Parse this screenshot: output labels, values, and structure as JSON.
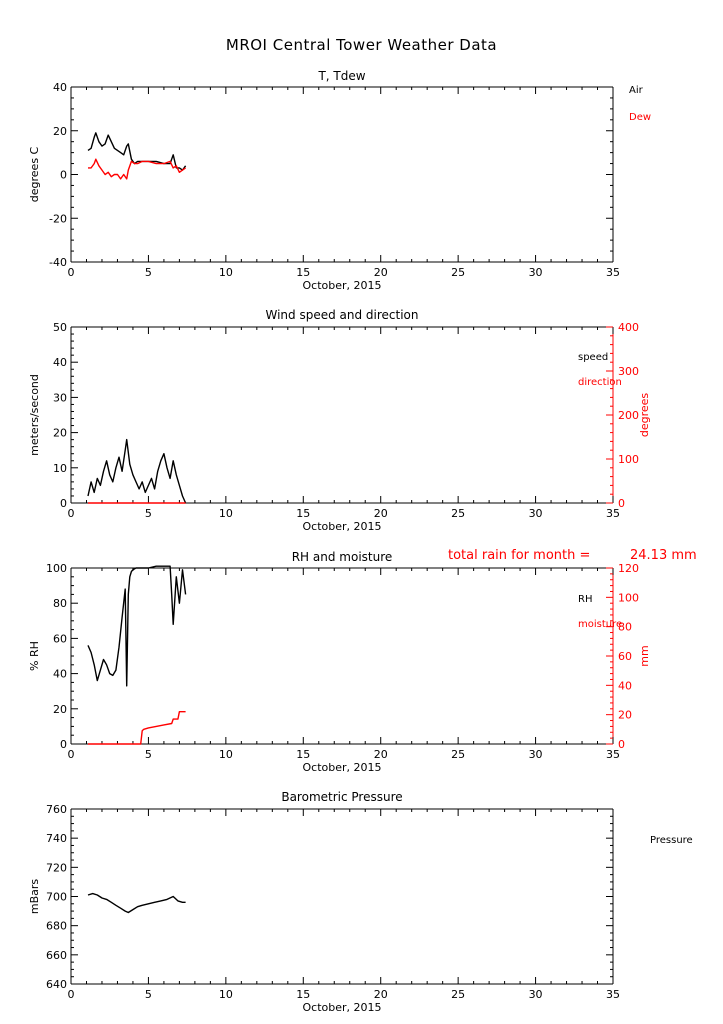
{
  "page_title": "MROI Central Tower Weather Data",
  "colors": {
    "black": "#000000",
    "red": "#ff0000"
  },
  "chart_data": [
    {
      "type": "line",
      "title": "T, Tdew",
      "xlabel": "October, 2015",
      "ylabel": "degrees C",
      "xlim": [
        0,
        35
      ],
      "ylim": [
        -40,
        40
      ],
      "xticks": [
        0,
        5,
        10,
        15,
        20,
        25,
        30,
        35
      ],
      "yticks": [
        -40,
        -20,
        0,
        20,
        40
      ],
      "legend": [
        {
          "label": "Air",
          "color": "#000000"
        },
        {
          "label": "Dew",
          "color": "#ff0000"
        }
      ],
      "series": [
        {
          "name": "Air",
          "color": "#000000",
          "x": [
            1.1,
            1.3,
            1.5,
            1.6,
            1.8,
            2.0,
            2.2,
            2.4,
            2.6,
            2.8,
            3.0,
            3.2,
            3.4,
            3.6,
            3.7,
            3.9,
            4.1,
            4.3,
            4.6,
            5.0,
            5.5,
            6.0,
            6.4,
            6.6,
            6.8,
            7.0,
            7.2,
            7.4
          ],
          "y": [
            11,
            12,
            17,
            19,
            15,
            13,
            14,
            18,
            15,
            12,
            11,
            10,
            9,
            13,
            14,
            7,
            5,
            6,
            6,
            6,
            6,
            5,
            5,
            9,
            3,
            3,
            2,
            4
          ]
        },
        {
          "name": "Dew",
          "color": "#ff0000",
          "x": [
            1.1,
            1.3,
            1.5,
            1.6,
            1.8,
            2.0,
            2.2,
            2.4,
            2.6,
            2.8,
            3.0,
            3.2,
            3.4,
            3.6,
            3.7,
            3.9,
            4.1,
            4.3,
            4.6,
            5.0,
            5.5,
            6.0,
            6.4,
            6.6,
            6.8,
            7.0,
            7.2,
            7.4
          ],
          "y": [
            3,
            3,
            5,
            7,
            4,
            2,
            0,
            1,
            -1,
            0,
            0,
            -2,
            0,
            -2,
            2,
            6,
            5,
            5,
            6,
            6,
            5,
            5,
            6,
            3,
            4,
            1,
            2,
            3
          ]
        }
      ]
    },
    {
      "type": "line",
      "title": "Wind speed and direction",
      "xlabel": "October, 2015",
      "ylabel": "meters/second",
      "ylabel_right": "degrees",
      "xlim": [
        0,
        35
      ],
      "ylim": [
        0,
        50
      ],
      "ylim_right": [
        0,
        400
      ],
      "xticks": [
        0,
        5,
        10,
        15,
        20,
        25,
        30,
        35
      ],
      "yticks": [
        0,
        10,
        20,
        30,
        40,
        50
      ],
      "yticks_right": [
        0,
        100,
        200,
        300,
        400
      ],
      "legend": [
        {
          "label": "speed",
          "color": "#000000"
        },
        {
          "label": "direction",
          "color": "#ff0000"
        }
      ],
      "series": [
        {
          "name": "speed",
          "color": "#000000",
          "axis": "left",
          "x": [
            1.1,
            1.3,
            1.5,
            1.7,
            1.9,
            2.1,
            2.3,
            2.5,
            2.7,
            2.9,
            3.1,
            3.3,
            3.5,
            3.6,
            3.8,
            4.0,
            4.2,
            4.4,
            4.6,
            4.8,
            5.0,
            5.2,
            5.4,
            5.6,
            5.8,
            6.0,
            6.2,
            6.4,
            6.6,
            6.8,
            7.0,
            7.2,
            7.4
          ],
          "y": [
            2,
            6,
            3,
            7,
            5,
            9,
            12,
            8,
            6,
            10,
            13,
            9,
            15,
            18,
            11,
            8,
            6,
            4,
            6,
            3,
            5,
            7,
            4,
            9,
            12,
            14,
            10,
            7,
            12,
            8,
            5,
            2,
            0
          ]
        },
        {
          "name": "direction",
          "color": "#ff0000",
          "axis": "right",
          "x": [
            1.1,
            7.4
          ],
          "y": [
            0,
            0
          ]
        }
      ]
    },
    {
      "type": "line",
      "title": "RH and moisture",
      "annotation": {
        "label": "total rain for month =",
        "value": "24.13 mm"
      },
      "xlabel": "October, 2015",
      "ylabel": "% RH",
      "ylabel_right": "mm",
      "xlim": [
        0,
        35
      ],
      "ylim": [
        0,
        100
      ],
      "ylim_right": [
        0,
        120
      ],
      "xticks": [
        0,
        5,
        10,
        15,
        20,
        25,
        30,
        35
      ],
      "yticks": [
        0,
        20,
        40,
        60,
        80,
        100
      ],
      "yticks_right": [
        0,
        20,
        40,
        60,
        80,
        100,
        120
      ],
      "legend": [
        {
          "label": "RH",
          "color": "#000000"
        },
        {
          "label": "moisture",
          "color": "#ff0000"
        }
      ],
      "series": [
        {
          "name": "RH",
          "color": "#000000",
          "axis": "left",
          "x": [
            1.1,
            1.3,
            1.5,
            1.7,
            1.9,
            2.1,
            2.3,
            2.5,
            2.7,
            2.9,
            3.1,
            3.3,
            3.5,
            3.6,
            3.7,
            3.8,
            3.9,
            4.0,
            4.2,
            4.5,
            5.0,
            5.5,
            6.0,
            6.4,
            6.5,
            6.6,
            6.8,
            7.0,
            7.2,
            7.4
          ],
          "y": [
            56,
            52,
            45,
            36,
            42,
            48,
            45,
            40,
            39,
            42,
            55,
            72,
            88,
            33,
            85,
            95,
            98,
            99,
            100,
            100,
            100,
            101,
            101,
            101,
            85,
            68,
            95,
            80,
            99,
            85
          ]
        },
        {
          "name": "moisture",
          "color": "#ff0000",
          "axis": "right",
          "x": [
            1.1,
            3.5,
            4.5,
            4.6,
            4.7,
            5.0,
            5.5,
            6.0,
            6.5,
            6.6,
            6.9,
            7.0,
            7.4
          ],
          "y": [
            0,
            0,
            0,
            9,
            10,
            11,
            12,
            13,
            14,
            17,
            17,
            22,
            22
          ]
        }
      ]
    },
    {
      "type": "line",
      "title": "Barometric Pressure",
      "xlabel": "October, 2015",
      "ylabel": "mBars",
      "xlim": [
        0,
        35
      ],
      "ylim": [
        640,
        760
      ],
      "xticks": [
        0,
        5,
        10,
        15,
        20,
        25,
        30,
        35
      ],
      "yticks": [
        640,
        660,
        680,
        700,
        720,
        740,
        760
      ],
      "legend": [
        {
          "label": "Pressure",
          "color": "#000000"
        }
      ],
      "series": [
        {
          "name": "Pressure",
          "color": "#000000",
          "x": [
            1.1,
            1.4,
            1.7,
            2.0,
            2.3,
            2.6,
            2.9,
            3.2,
            3.5,
            3.7,
            4.0,
            4.3,
            4.6,
            5.0,
            5.4,
            5.8,
            6.2,
            6.6,
            6.9,
            7.2,
            7.4
          ],
          "y": [
            701,
            702,
            701,
            699,
            698,
            696,
            694,
            692,
            690,
            689,
            691,
            693,
            694,
            695,
            696,
            697,
            698,
            700,
            697,
            696,
            696
          ]
        }
      ]
    }
  ]
}
